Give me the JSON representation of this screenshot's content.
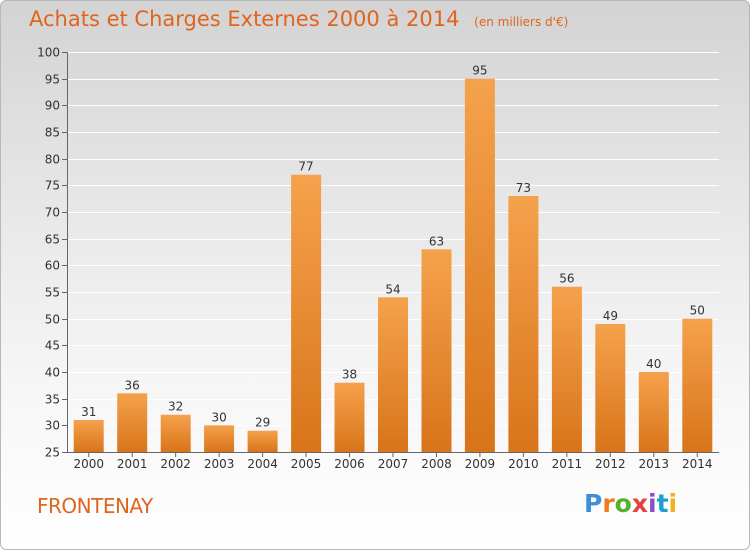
{
  "header": {
    "title": "Achats et Charges Externes 2000 à 2014",
    "subtitle": "(en milliers d'€)"
  },
  "footer": {
    "place": "FRONTENAY",
    "logo_text": "Proxiti",
    "logo_colors": [
      "#3f8fd8",
      "#f07a1c",
      "#55b030",
      "#e84040",
      "#8a4fc8",
      "#1aa0d0",
      "#f0b020"
    ]
  },
  "colors": {
    "bar_light": "#f5a24c",
    "bar_dark": "#d8741a",
    "accent": "#e0651c"
  },
  "chart_data": {
    "type": "bar",
    "title": "Achats et Charges Externes 2000 à 2014",
    "subtitle": "(en milliers d'€)",
    "categories": [
      "2000",
      "2001",
      "2002",
      "2003",
      "2004",
      "2005",
      "2006",
      "2007",
      "2008",
      "2009",
      "2010",
      "2011",
      "2012",
      "2013",
      "2014"
    ],
    "values": [
      31,
      36,
      32,
      30,
      29,
      77,
      38,
      54,
      63,
      95,
      73,
      56,
      49,
      40,
      50
    ],
    "xlabel": "",
    "ylabel": "",
    "ylim": [
      25,
      100
    ],
    "yticks": [
      25,
      30,
      35,
      40,
      45,
      50,
      55,
      60,
      65,
      70,
      75,
      80,
      85,
      90,
      95,
      100
    ],
    "grid": true,
    "legend": "none"
  }
}
